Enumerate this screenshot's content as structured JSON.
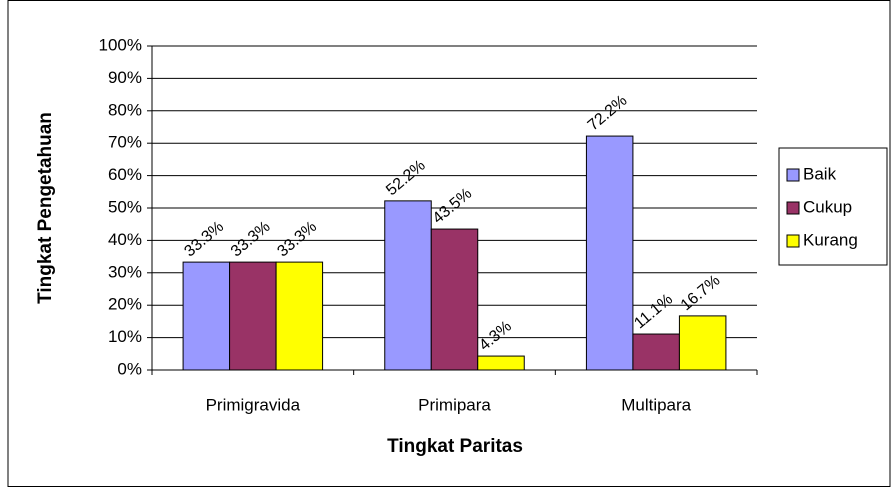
{
  "chart_data": {
    "type": "bar",
    "xlabel": "Tingkat Paritas",
    "ylabel": "Tingkat Pengetahuan",
    "categories": [
      "Primigravida",
      "Primipara",
      "Multipara"
    ],
    "series": [
      {
        "name": "Baik",
        "color": "#9999ff",
        "values": [
          33.3,
          52.2,
          72.2
        ],
        "value_labels": [
          "33.3%",
          "52.2%",
          "72.2%"
        ]
      },
      {
        "name": "Cukup",
        "color": "#993366",
        "values": [
          33.3,
          43.5,
          11.1
        ],
        "value_labels": [
          "33.3%",
          "43.5%",
          "11.1%"
        ]
      },
      {
        "name": "Kurang",
        "color": "#ffff00",
        "values": [
          33.3,
          4.3,
          16.7
        ],
        "value_labels": [
          "33.3%",
          "4.3%",
          "16.7%"
        ]
      }
    ],
    "ylim": [
      0,
      100
    ],
    "yticks": [
      {
        "value": 0,
        "label": "0%"
      },
      {
        "value": 10,
        "label": "10%"
      },
      {
        "value": 20,
        "label": "20%"
      },
      {
        "value": 30,
        "label": "30%"
      },
      {
        "value": 40,
        "label": "40%"
      },
      {
        "value": 50,
        "label": "50%"
      },
      {
        "value": 60,
        "label": "60%"
      },
      {
        "value": 70,
        "label": "70%"
      },
      {
        "value": 80,
        "label": "80%"
      },
      {
        "value": 90,
        "label": "90%"
      },
      {
        "value": 100,
        "label": "100%"
      }
    ],
    "grid": true,
    "legend": "right"
  }
}
